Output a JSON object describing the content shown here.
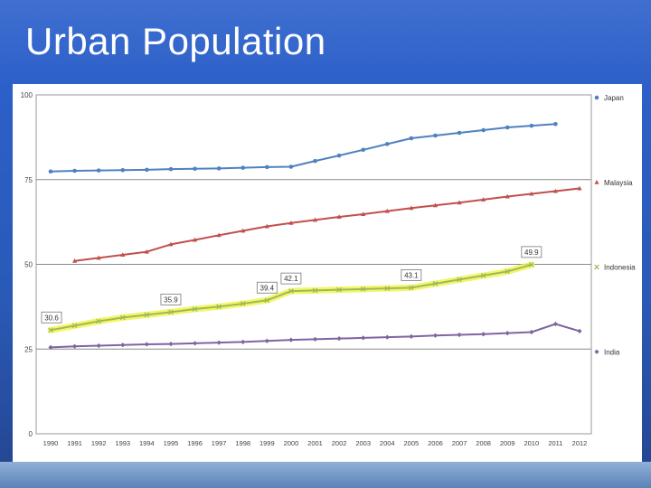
{
  "slide": {
    "title": "Urban Population"
  },
  "chart_data": {
    "type": "line",
    "title": "Urban Population",
    "xlabel": "",
    "ylabel": "",
    "ylim": [
      0,
      100
    ],
    "yticks": [
      "0",
      "25",
      "50",
      "75",
      "100"
    ],
    "categories": [
      "1990",
      "1991",
      "1992",
      "1993",
      "1994",
      "1995",
      "1996",
      "1997",
      "1998",
      "1999",
      "2000",
      "2001",
      "2002",
      "2003",
      "2004",
      "2005",
      "2006",
      "2007",
      "2008",
      "2009",
      "2010",
      "2011",
      "2012"
    ],
    "legend_position": "right",
    "series": [
      {
        "name": "Japan",
        "color": "#4f81bd",
        "marker": "circle",
        "values": [
          77.4,
          77.6,
          77.7,
          77.8,
          77.9,
          78.1,
          78.2,
          78.3,
          78.5,
          78.7,
          78.8,
          80.5,
          82.1,
          83.8,
          85.5,
          87.2,
          88.0,
          88.8,
          89.6,
          90.4,
          90.9,
          91.4,
          null
        ]
      },
      {
        "name": "Malaysia",
        "color": "#c0504d",
        "marker": "triangle",
        "values": [
          null,
          51.0,
          51.9,
          52.8,
          53.7,
          55.9,
          57.2,
          58.6,
          59.9,
          61.2,
          62.2,
          63.1,
          64.0,
          64.8,
          65.7,
          66.6,
          67.4,
          68.2,
          69.1,
          70.0,
          70.8,
          71.6,
          72.4
        ]
      },
      {
        "name": "Indonesia",
        "color": "#9bbb59",
        "marker": "x",
        "values": [
          30.6,
          31.9,
          33.2,
          34.3,
          35.1,
          35.9,
          36.8,
          37.5,
          38.4,
          39.4,
          42.1,
          42.3,
          42.5,
          42.7,
          42.9,
          43.1,
          44.3,
          45.5,
          46.7,
          47.9,
          49.9,
          null,
          null
        ],
        "data_labels": [
          {
            "category": "1990",
            "text": "30.6"
          },
          {
            "category": "1995",
            "text": "35.9"
          },
          {
            "category": "1999",
            "text": "39.4"
          },
          {
            "category": "2000",
            "text": "42.1"
          },
          {
            "category": "2005",
            "text": "43.1"
          },
          {
            "category": "2010",
            "text": "49.9"
          }
        ]
      },
      {
        "name": "India",
        "color": "#8064a2",
        "marker": "diamond",
        "values": [
          25.5,
          25.8,
          26.0,
          26.2,
          26.4,
          26.5,
          26.7,
          26.9,
          27.1,
          27.4,
          27.7,
          27.9,
          28.1,
          28.3,
          28.5,
          28.7,
          29.0,
          29.2,
          29.4,
          29.7,
          30.0,
          32.4,
          30.3
        ]
      }
    ]
  }
}
